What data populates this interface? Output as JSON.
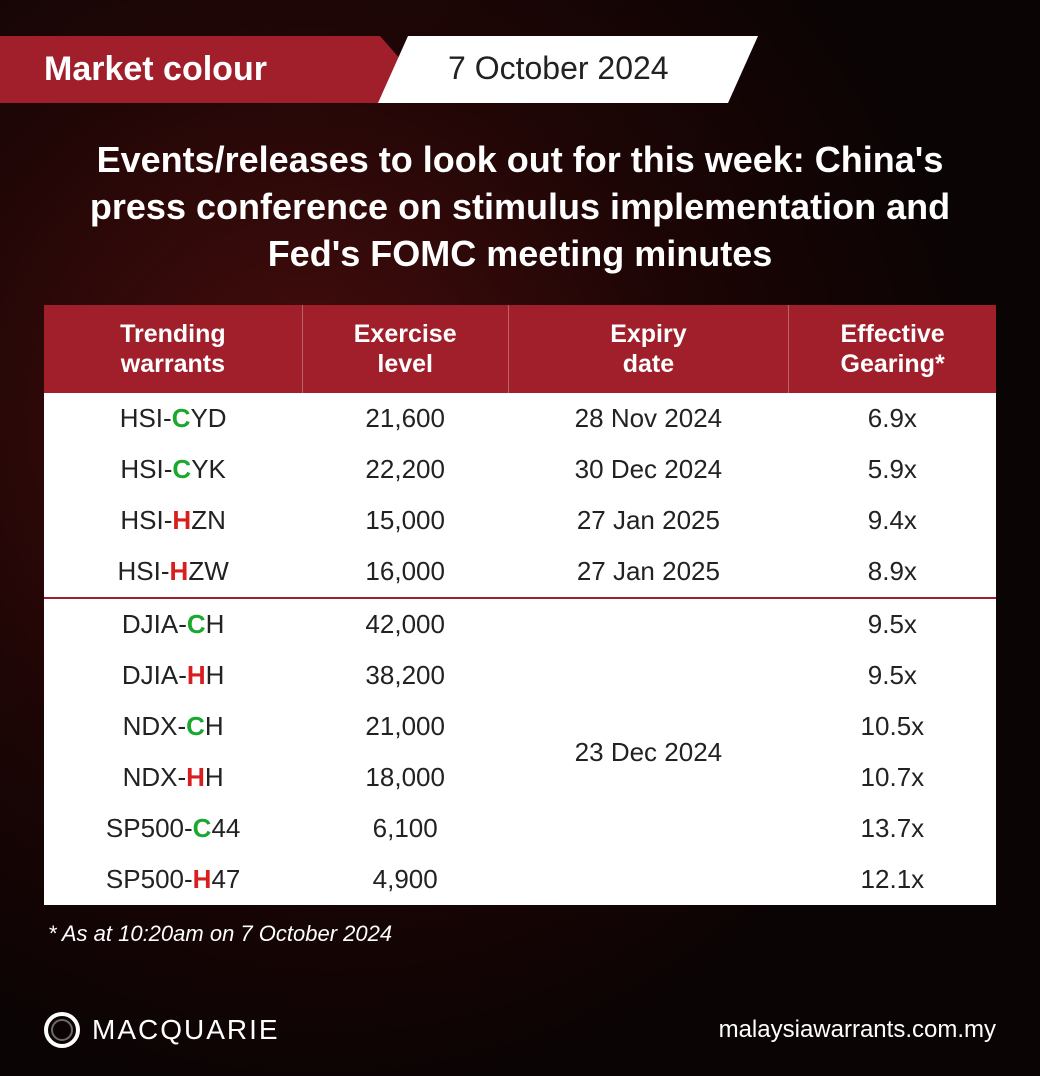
{
  "banner": {
    "left": "Market colour",
    "right": "7 October 2024"
  },
  "headline": "Events/releases to look out for this week: China's press conference on stimulus implementation and Fed's FOMC meeting minutes",
  "table": {
    "columns": [
      {
        "l1": "Trending",
        "l2": "warrants"
      },
      {
        "l1": "Exercise",
        "l2": "level"
      },
      {
        "l1": "Expiry",
        "l2": "date"
      },
      {
        "l1": "Effective",
        "l2": "Gearing*"
      }
    ],
    "group1": [
      {
        "pre": "HSI-",
        "letter": "C",
        "suf": "YD",
        "ex": "21,600",
        "date": "28 Nov 2024",
        "gear": "6.9x"
      },
      {
        "pre": "HSI-",
        "letter": "C",
        "suf": "YK",
        "ex": "22,200",
        "date": "30 Dec 2024",
        "gear": "5.9x"
      },
      {
        "pre": "HSI-",
        "letter": "H",
        "suf": "ZN",
        "ex": "15,000",
        "date": "27 Jan 2025",
        "gear": "9.4x"
      },
      {
        "pre": "HSI-",
        "letter": "H",
        "suf": "ZW",
        "ex": "16,000",
        "date": "27 Jan 2025",
        "gear": "8.9x"
      }
    ],
    "group2_date": "23 Dec 2024",
    "group2": [
      {
        "pre": "DJIA-",
        "letter": "C",
        "suf": "H",
        "ex": "42,000",
        "gear": "9.5x"
      },
      {
        "pre": "DJIA-",
        "letter": "H",
        "suf": "H",
        "ex": "38,200",
        "gear": "9.5x"
      },
      {
        "pre": "NDX-",
        "letter": "C",
        "suf": "H",
        "ex": "21,000",
        "gear": "10.5x"
      },
      {
        "pre": "NDX-",
        "letter": "H",
        "suf": "H",
        "ex": "18,000",
        "gear": "10.7x"
      },
      {
        "pre": "SP500-",
        "letter": "C",
        "suf": "44",
        "ex": "6,100",
        "gear": "13.7x"
      },
      {
        "pre": "SP500-",
        "letter": "H",
        "suf": "47",
        "ex": "4,900",
        "gear": "12.1x"
      }
    ]
  },
  "footnote": "* As at 10:20am on 7 October 2024",
  "footer": {
    "brand": "MACQUARIE",
    "site": "malaysiawarrants.com.my"
  },
  "colors": {
    "brand_red": "#a01f2b",
    "call_green": "#1aa82e",
    "put_red": "#d81e1e",
    "white": "#ffffff",
    "text_dark": "#222222"
  }
}
